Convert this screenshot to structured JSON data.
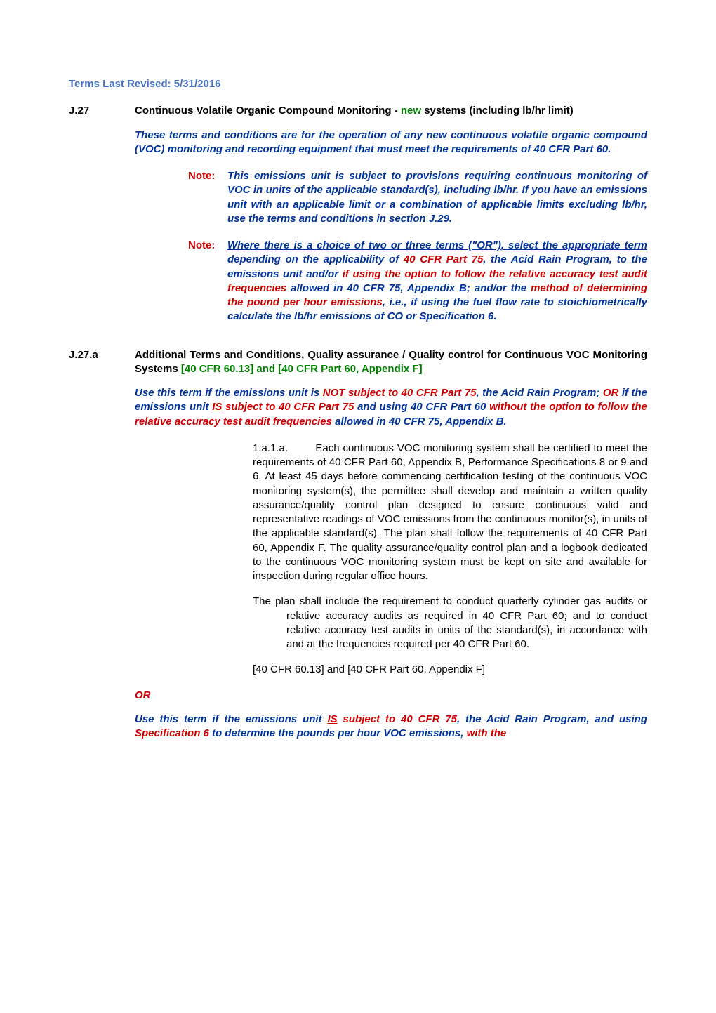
{
  "revised": "Terms Last Revised: 5/31/2016",
  "s1": {
    "num": "J.27",
    "heading_pre": "Continuous Volatile Organic Compound Monitoring - ",
    "heading_green": "new",
    "heading_post": " systems (including lb/hr limit)"
  },
  "intro": "These terms and conditions are for the operation of any new continuous volatile organic compound (VOC) monitoring and recording equipment that must meet the requirements of 40 CFR Part 60.",
  "note1": {
    "label": "Note:",
    "line1_pre": "This emissions unit is subject to provisions requiring continuous",
    "body": "monitoring of VOC in units of the applicable standard(s), ",
    "including": "including",
    "body2": " lb/hr.  If you have an emissions unit with an applicable limit or a combination of applicable limits excluding lb/hr, use the terms and conditions in section J.29."
  },
  "note2": {
    "label": "Note:",
    "underline_pre": "Where there is a ",
    "choice": "choice of two or three terms (\"OR\")",
    "underline_post": ", select the appropriate term",
    "after_underline": " depending on the applicability of ",
    "red1": "40 CFR Part 75",
    "blue2": ", the Acid Rain Program, to the emissions unit and/or ",
    "red2": "if using the option to follow the relative accuracy test audit frequencies",
    "blue3": " allowed in 40 CFR 75, Appendix B; and/or the ",
    "red3": "method of determining the pound per hour emissions",
    "blue4": ", i.e., if using the fuel flow rate to stoichiometrically calculate the lb/hr emissions of CO or Specification 6."
  },
  "s2": {
    "num": "J.27.a",
    "underline": "Additional Terms and Conditions",
    "black": ", Quality assurance / Quality control for Continuous VOC Monitoring Systems ",
    "green": "[40 CFR 60.13] and [40 CFR Part 60, Appendix F]"
  },
  "cond1": {
    "pre": "Use this term if the emissions unit is ",
    "not": "NOT",
    "mid1": " subject to 40 CFR Part 75",
    "blue1": ", the Acid Rain Program; ",
    "or": "OR",
    "blue2": " if the emissions unit ",
    "is": "IS",
    "mid2": " subject to 40 CFR Part 75",
    "blue3": " and using 40 CFR Part 60 ",
    "red2": "without the option to follow the relative accuracy test audit frequencies",
    "blue4": " allowed in 40 CFR 75, Appendix B."
  },
  "item1": {
    "num": "1.a.1.a.",
    "text": "Each continuous VOC monitoring system shall be certified to meet the requirements of 40 CFR Part 60, Appendix B, Performance Specifications 8 or 9 and 6.  At least 45 days before commencing certification testing of the continuous VOC monitoring system(s), the permittee shall develop and maintain a written quality assurance/quality control plan designed to ensure continuous valid and representative readings of VOC emissions from the continuous monitor(s), in units of the applicable standard(s).  The plan shall follow the requirements of 40 CFR Part 60, Appendix F.  The quality assurance/quality control plan and a logbook dedicated to the continuous VOC monitoring system must be kept on site and available for inspection during regular office hours."
  },
  "item1b": "The plan shall include the requirement to conduct quarterly cylinder gas audits or relative accuracy audits as required in 40 CFR Part 60; and to conduct relative accuracy test audits in units of the standard(s), in accordance with and at the frequencies required per 40 CFR Part 60.",
  "ref1": "[40 CFR 60.13] and [40 CFR Part 60, Appendix F]",
  "or_sep": "OR",
  "cond2": {
    "pre": "Use this term if the emissions unit ",
    "is": "IS",
    "mid": " subject to 40 CFR 75",
    "blue1": ", the Acid Rain Program, and using ",
    "red1": "Specification 6",
    "blue2": " to determine the pounds per hour VOC emissions, ",
    "red2": "with the"
  },
  "colors": {
    "link_blue": "#4472c4",
    "body_blue": "#003399",
    "red": "#cc0000",
    "green": "#008000",
    "black": "#000000"
  }
}
